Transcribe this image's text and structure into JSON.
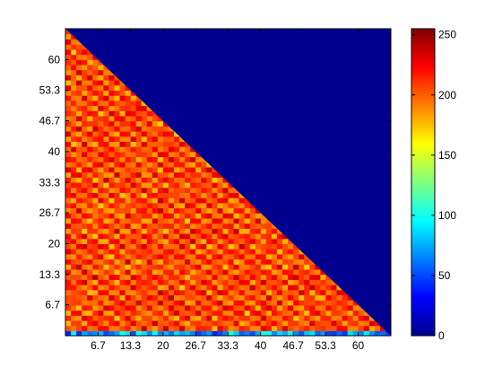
{
  "chart_data": {
    "type": "heatmap",
    "title": "",
    "xlabel": "",
    "ylabel": "",
    "xlim": [
      0,
      66.7
    ],
    "ylim": [
      0,
      66.7
    ],
    "x_ticks": [
      "6.7",
      "13.3",
      "20",
      "26.7",
      "33.3",
      "40",
      "46.7",
      "53.3",
      "60"
    ],
    "x_tick_values": [
      6.7,
      13.3,
      20,
      26.7,
      33.3,
      40,
      46.7,
      53.3,
      60
    ],
    "y_ticks": [
      "6.7",
      "13.3",
      "20",
      "26.7",
      "33.3",
      "40",
      "46.7",
      "53.3",
      "60"
    ],
    "y_tick_values": [
      6.7,
      13.3,
      20,
      26.7,
      33.3,
      40,
      46.7,
      53.3,
      60
    ],
    "colorbar": {
      "colormap": "jet",
      "range": [
        0,
        255
      ],
      "ticks": [
        "0",
        "50",
        "100",
        "150",
        "200",
        "250"
      ],
      "tick_values": [
        0,
        50,
        100,
        150,
        200,
        250
      ]
    },
    "region_below_diagonal": {
      "typical_value_range": [
        170,
        240
      ],
      "description": "textured high values"
    },
    "region_above_diagonal": {
      "value": 0
    },
    "grid": false,
    "colors": {
      "low": "#00008f",
      "mid": "#80ff80",
      "high": "#800000",
      "axis": "#000000"
    }
  }
}
